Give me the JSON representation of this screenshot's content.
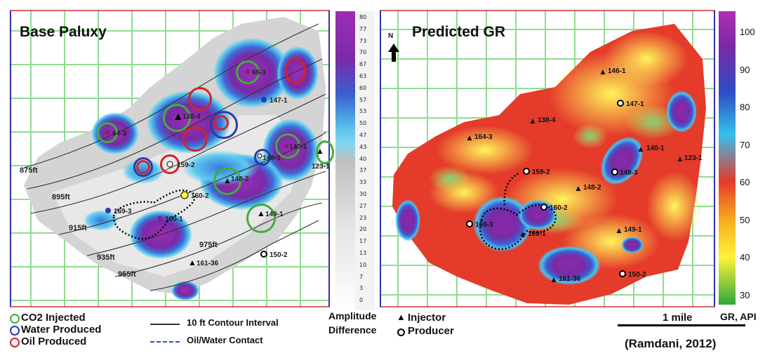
{
  "left_map": {
    "title": "Base Paluxy",
    "contours": [
      "875ft",
      "895ft",
      "915ft",
      "935ft",
      "955ft",
      "975ft"
    ],
    "wells": [
      "64-3",
      "66-1",
      "147-1",
      "138-4",
      "140-1",
      "148-3",
      "159-2",
      "160-2",
      "148-2",
      "123-1",
      "169-3",
      "160-1",
      "149-1",
      "150-2",
      "161-36"
    ],
    "colorbar": {
      "ticks": [
        "80",
        "77",
        "73",
        "70",
        "67",
        "63",
        "60",
        "57",
        "53",
        "50",
        "47",
        "43",
        "40",
        "37",
        "33",
        "30",
        "27",
        "23",
        "20",
        "17",
        "13",
        "10",
        "7",
        "3",
        "0"
      ],
      "label_line1": "Amplitude",
      "label_line2": "Difference"
    }
  },
  "right_map": {
    "title": "Predicted GR",
    "north": "N",
    "wells": [
      "146-1",
      "147-1",
      "138-4",
      "164-3",
      "140-1",
      "123-1",
      "159-2",
      "148-3",
      "148-2",
      "160-2",
      "169-3",
      "160-1",
      "149-1",
      "150-2",
      "161-36"
    ],
    "colorbar": {
      "ticks": [
        "100",
        "90",
        "80",
        "70",
        "60",
        "50",
        "40",
        "30"
      ],
      "label": "GR, API"
    },
    "scale_bar": "1 mile"
  },
  "legend": {
    "co2": "CO2 Injected",
    "water": "Water Produced",
    "oil": "Oil Produced",
    "contour": "10 ft Contour Interval",
    "owc": "Oil/Water Contact",
    "injector": "Injector",
    "producer": "Producer"
  },
  "citation": "(Ramdani, 2012)",
  "colors": {
    "co2": "#3fae3f",
    "water": "#2b3aa8",
    "oil": "#d3232a",
    "grid": "#7fd67f"
  }
}
